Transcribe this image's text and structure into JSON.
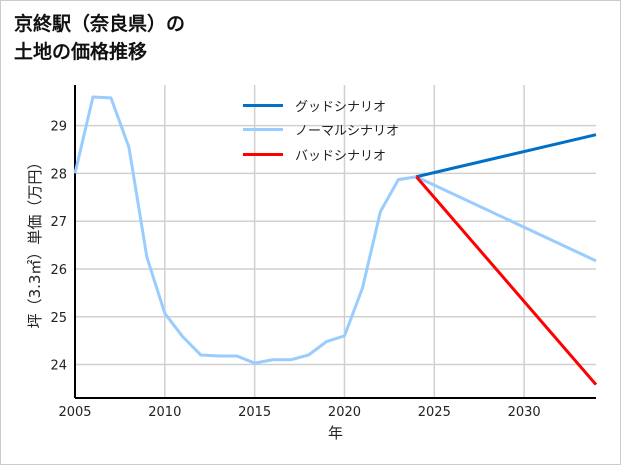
{
  "chart_data": {
    "type": "line",
    "title": [
      "京終駅（奈良県）の",
      "土地の価格推移"
    ],
    "xlabel": "年",
    "ylabel": "坪（3.3㎡）単価（万円）",
    "xlim": [
      2005,
      2034
    ],
    "ylim": [
      23.3,
      29.85
    ],
    "xticks": [
      2005,
      2010,
      2015,
      2020,
      2025,
      2030
    ],
    "yticks": [
      24,
      25,
      26,
      27,
      28,
      29
    ],
    "grid": true,
    "legend_position": "top-center",
    "series": [
      {
        "name": "グッドシナリオ",
        "color": "#0070c8",
        "x": [
          2024,
          2034
        ],
        "y": [
          27.93,
          28.81
        ]
      },
      {
        "name": "ノーマルシナリオ",
        "color": "#99ccff",
        "x": [
          2005,
          2006,
          2007,
          2008,
          2009,
          2010,
          2011,
          2012,
          2013,
          2014,
          2015,
          2016,
          2017,
          2018,
          2019,
          2020,
          2021,
          2022,
          2023,
          2024,
          2034
        ],
        "y": [
          28.0,
          29.6,
          29.58,
          28.55,
          26.25,
          25.07,
          24.58,
          24.2,
          24.18,
          24.18,
          24.03,
          24.1,
          24.1,
          24.2,
          24.48,
          24.6,
          25.6,
          27.2,
          27.87,
          27.93,
          26.17
        ]
      },
      {
        "name": "バッドシナリオ",
        "color": "#ff0000",
        "x": [
          2024,
          2034
        ],
        "y": [
          27.93,
          23.58
        ]
      }
    ]
  }
}
